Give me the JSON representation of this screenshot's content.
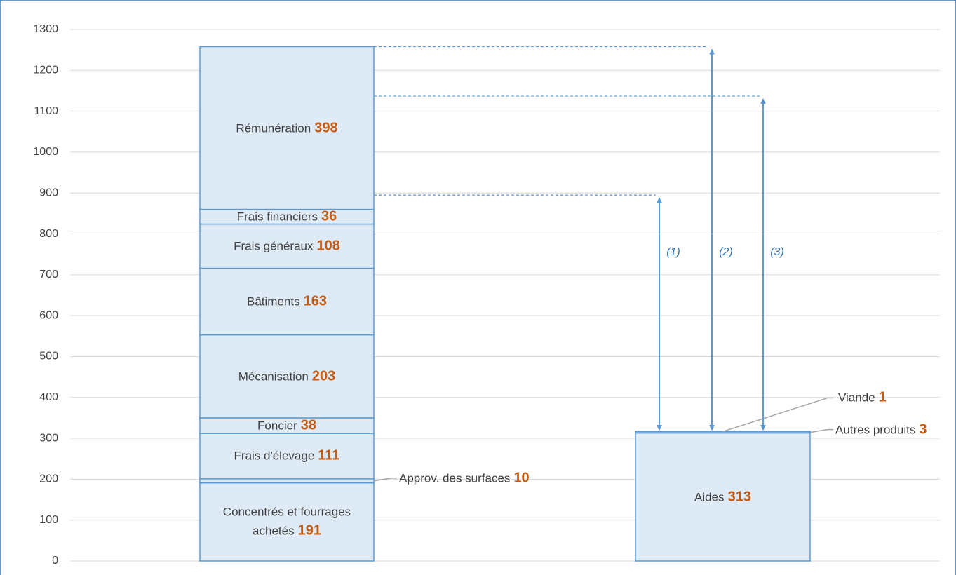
{
  "chart_data": {
    "type": "stacked_bar",
    "categories": [
      null,
      null
    ],
    "color": "#deeaf6",
    "edge_color": "#5b9bd5",
    "series": [
      {
        "name": "Concentrés et fourrages achetés",
        "values": [
          191,
          null
        ]
      },
      {
        "name": "Approv. des surfaces",
        "values": [
          10,
          null
        ]
      },
      {
        "name": "Frais d'élevage",
        "values": [
          111,
          null
        ]
      },
      {
        "name": "Foncier",
        "values": [
          38,
          null
        ]
      },
      {
        "name": "Mécanisation",
        "values": [
          203,
          null
        ]
      },
      {
        "name": "Bâtiments",
        "values": [
          163,
          null
        ]
      },
      {
        "name": "Frais généraux",
        "values": [
          108,
          null
        ]
      },
      {
        "name": "Frais financiers",
        "values": [
          36,
          null
        ]
      },
      {
        "name": "Rémunération",
        "values": [
          398,
          null
        ]
      },
      {
        "name": "Aides",
        "values": [
          null,
          313
        ]
      },
      {
        "name": "Autres produits",
        "values": [
          null,
          3
        ]
      },
      {
        "name": "Viande",
        "values": [
          null,
          1
        ]
      }
    ],
    "ylim": [
      0,
      1300
    ],
    "yticks": [
      0,
      100,
      200,
      300,
      400,
      500,
      600,
      700,
      800,
      900,
      1000,
      1100,
      1200,
      1300
    ],
    "grid": true,
    "annotations": [
      {
        "label": "(1)",
        "value": 895
      },
      {
        "label": "(2)",
        "value": 1258
      },
      {
        "label": "(3)",
        "value": 1137
      }
    ]
  }
}
